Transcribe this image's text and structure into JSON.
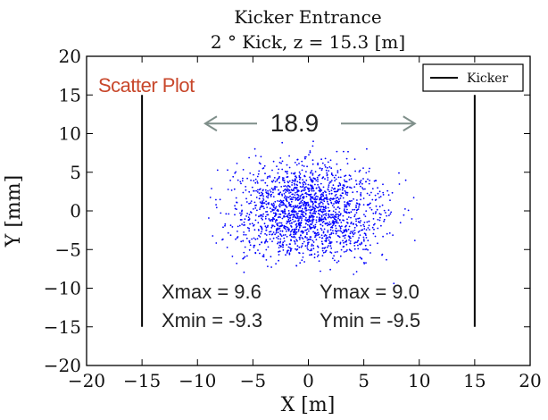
{
  "chart_data": {
    "type": "scatter",
    "title_lines": [
      "Kicker Entrance",
      "2 ° Kick, z = 15.3 [m]"
    ],
    "xlabel": "X [m]",
    "ylabel": "Y [mm]",
    "xlim": [
      -20,
      20
    ],
    "ylim": [
      -20,
      20
    ],
    "x_ticks": [
      -20,
      -15,
      -10,
      -5,
      0,
      5,
      10,
      15,
      20
    ],
    "y_ticks": [
      -20,
      -15,
      -10,
      -5,
      0,
      5,
      10,
      15,
      20
    ],
    "x_tick_labels": [
      "−20",
      "−15",
      "−10",
      "−5",
      "0",
      "5",
      "10",
      "15",
      "20"
    ],
    "y_tick_labels": [
      "−20",
      "−15",
      "−10",
      "−5",
      "0",
      "5",
      "10",
      "15",
      "20"
    ],
    "grid": false,
    "legend": {
      "position": "top-right",
      "entries": [
        "Kicker"
      ]
    },
    "kicker_lines": [
      {
        "name": "Kicker",
        "x": -15,
        "y_range": [
          -15,
          15
        ]
      },
      {
        "name": "Kicker",
        "x": 15,
        "y_range": [
          -15,
          15
        ]
      }
    ],
    "scatter": {
      "color": "#0000ff",
      "center": [
        0,
        0
      ],
      "x_range": [
        -9.3,
        9.6
      ],
      "y_range": [
        -9.5,
        9.0
      ],
      "point_count": 1800
    },
    "annotations": {
      "panel_label": "Scatter Plot",
      "width_label": "18.9",
      "width_arrow_x": [
        -9.3,
        9.6
      ],
      "stats": [
        "Xmax = 9.6",
        "Ymax = 9.0",
        "Xmin = -9.3",
        "Ymin = -9.5"
      ]
    },
    "colors": {
      "points": "#0000ff",
      "kicker": "#000000",
      "arrow": "#7f8f8a",
      "panel_label": "#c8472b"
    }
  }
}
